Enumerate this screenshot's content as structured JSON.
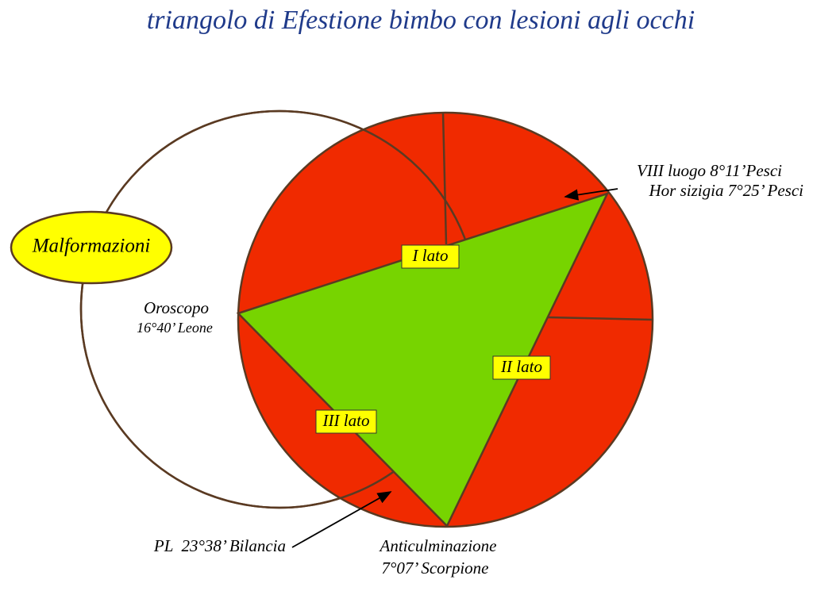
{
  "title": "triangolo di Efestione bimbo con lesioni agli occhi",
  "sides": [
    "I lato",
    "II lato",
    "III lato"
  ],
  "oval_label": "Malformazioni",
  "points": [
    {
      "label": "Oroscopo",
      "detail": "16°40’ Leone"
    },
    {
      "label": "VIII luogo 8°11’Pesci",
      "detail": "Hor sizigia 7°25’ Pesci"
    },
    {
      "label": "Anticulminazione",
      "detail": "7°07’ Scorpione"
    },
    {
      "label": "PL  23°38’ Bilancia"
    }
  ]
}
